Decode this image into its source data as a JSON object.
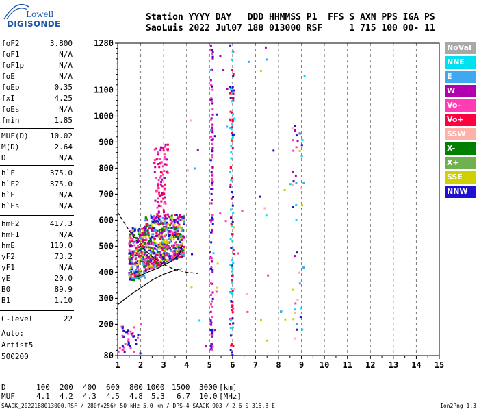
{
  "logo": {
    "line1": "Lowell",
    "line2": "DIGISONDE"
  },
  "header": {
    "line1": "Station YYYY DAY   DDD HHMMSS P1  FFS S AXN PPS IGA PS",
    "line2": "SaoLuis 2022 Jul07 188 013000 RSF     1 715 100 00- 11"
  },
  "params": [
    {
      "name": "foF2",
      "value": "3.800"
    },
    {
      "name": "foF1",
      "value": "N/A"
    },
    {
      "name": "foF1p",
      "value": "N/A"
    },
    {
      "name": "foE",
      "value": "N/A"
    },
    {
      "name": "foEp",
      "value": "0.35"
    },
    {
      "name": "fxI",
      "value": "4.25"
    },
    {
      "name": "foEs",
      "value": "N/A"
    },
    {
      "name": "fmin",
      "value": "1.85"
    },
    {
      "name": "MUF(D)",
      "value": "10.02"
    },
    {
      "name": "M(D)",
      "value": "2.64"
    },
    {
      "name": "D",
      "value": "N/A"
    },
    {
      "name": "h`F",
      "value": "375.0"
    },
    {
      "name": "h`F2",
      "value": "375.0"
    },
    {
      "name": "h`E",
      "value": "N/A"
    },
    {
      "name": "h`Es",
      "value": "N/A"
    },
    {
      "name": "hmF2",
      "value": "417.3"
    },
    {
      "name": "hmF1",
      "value": "N/A"
    },
    {
      "name": "hmE",
      "value": "110.0"
    },
    {
      "name": "yF2",
      "value": "73.2"
    },
    {
      "name": "yF1",
      "value": "N/A"
    },
    {
      "name": "yE",
      "value": "20.0"
    },
    {
      "name": "B0",
      "value": "89.9"
    },
    {
      "name": "B1",
      "value": "1.10"
    },
    {
      "name": "C-level",
      "value": "22"
    }
  ],
  "info": {
    "auto": "Auto:",
    "artist": "Artist5",
    "code": "500200"
  },
  "legend": [
    {
      "label": "NoVal",
      "color": "#a8a8a8"
    },
    {
      "label": "NNE",
      "color": "#00e0f0"
    },
    {
      "label": "E",
      "color": "#40a8f0"
    },
    {
      "label": "W",
      "color": "#b000b0"
    },
    {
      "label": "Vo-",
      "color": "#ff3cb4"
    },
    {
      "label": "Vo+",
      "color": "#ff0040"
    },
    {
      "label": "SSW",
      "color": "#ffb0a8"
    },
    {
      "label": "X-",
      "color": "#008000"
    },
    {
      "label": "X+",
      "color": "#70b050"
    },
    {
      "label": "SSE",
      "color": "#d0d000"
    },
    {
      "label": "NNW",
      "color": "#2010d0"
    }
  ],
  "muf_table": {
    "d_label": "D",
    "d_values": [
      "100",
      "200",
      "400",
      "600",
      "800",
      "1000",
      "1500",
      "3000"
    ],
    "d_unit": "[km]",
    "muf_label": "MUF",
    "muf_values": [
      "4.1",
      "4.2",
      "4.3",
      "4.5",
      "4.8",
      "5.3",
      "6.7",
      "10.0"
    ],
    "muf_unit": "[MHz]"
  },
  "footer": {
    "left": "SAAOK_2022188013000.RSF / 280fx256h 50 kHz 5.0 km / DPS-4 SAAOK 903 / 2.6 S 315.8 E",
    "right": "Ion2Png 1.3.17"
  },
  "chart_data": {
    "type": "scatter",
    "xlabel": "",
    "ylabel": "",
    "xlim": [
      1,
      15
    ],
    "ylim": [
      80,
      1280
    ],
    "x_ticks": [
      1,
      2,
      3,
      4,
      5,
      6,
      7,
      8,
      9,
      10,
      11,
      12,
      13,
      14,
      15
    ],
    "y_ticks": [
      80,
      200,
      300,
      400,
      500,
      600,
      700,
      800,
      900,
      1000,
      1100,
      1280
    ],
    "grid": "dashed-vertical",
    "legend_position": "right",
    "clusters": [
      {
        "name": "F-layer trace",
        "x_range": [
          1.5,
          3.9
        ],
        "y_range": [
          360,
          620
        ],
        "colors": [
          "#ff3cb4",
          "#b000b0",
          "#2010d0",
          "#ff0040",
          "#008000",
          "#d0d000",
          "#40a8f0"
        ]
      },
      {
        "name": "Upper F echoes",
        "x_range": [
          2.6,
          3.2
        ],
        "y_range": [
          620,
          890
        ],
        "colors": [
          "#ff3cb4",
          "#b000b0",
          "#ff0040"
        ]
      },
      {
        "name": "Interference 5 MHz",
        "x_range": [
          5.05,
          5.15
        ],
        "y_range": [
          80,
          1280
        ],
        "colors": [
          "#2010d0",
          "#b000b0",
          "#ff3cb4"
        ]
      },
      {
        "name": "Interference 6 MHz",
        "x_range": [
          5.9,
          6.05
        ],
        "y_range": [
          80,
          1280
        ],
        "colors": [
          "#2010d0",
          "#ff0040",
          "#00e0f0"
        ]
      },
      {
        "name": "Low echoes",
        "x_range": [
          1.0,
          2.0
        ],
        "y_range": [
          80,
          210
        ],
        "colors": [
          "#2010d0",
          "#ff3cb4"
        ]
      }
    ],
    "fitted_traces": [
      {
        "name": "virtual height O",
        "points": [
          [
            1.0,
            275
          ],
          [
            1.5,
            310
          ],
          [
            2.0,
            340
          ],
          [
            2.5,
            370
          ],
          [
            3.0,
            392
          ],
          [
            3.5,
            408
          ],
          [
            3.8,
            414
          ]
        ]
      },
      {
        "name": "upper trace",
        "points": [
          [
            1.8,
            380
          ],
          [
            2.3,
            400
          ],
          [
            2.8,
            418
          ],
          [
            3.3,
            440
          ],
          [
            3.7,
            470
          ],
          [
            3.8,
            500
          ]
        ]
      },
      {
        "name": "profile dashed",
        "points": [
          [
            1.0,
            630
          ],
          [
            1.5,
            560
          ],
          [
            2.0,
            500
          ],
          [
            2.5,
            460
          ],
          [
            3.0,
            430
          ],
          [
            3.5,
            410
          ],
          [
            4.0,
            400
          ],
          [
            4.5,
            395
          ]
        ]
      }
    ]
  }
}
